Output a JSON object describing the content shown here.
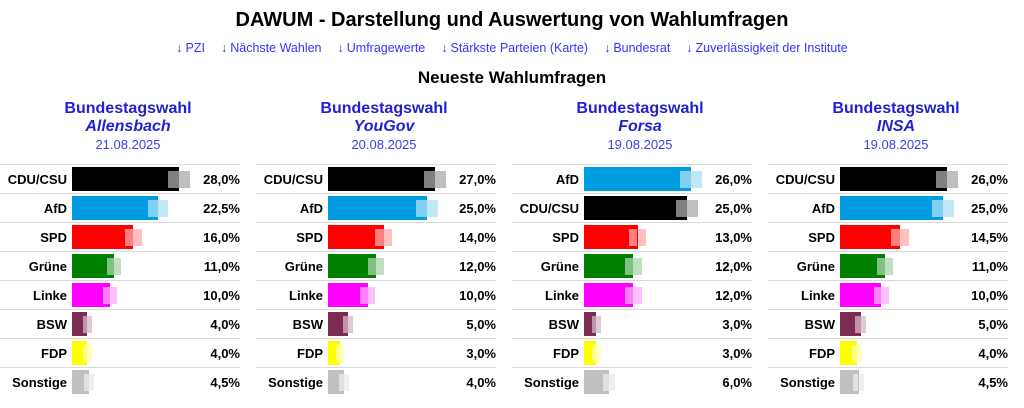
{
  "page": {
    "title": "DAWUM - Darstellung und Auswertung von Wahlumfragen",
    "section_title": "Neueste Wahlumfragen",
    "link_arrow": "↓",
    "nav_links": [
      {
        "name": "pzi",
        "label": "PZI"
      },
      {
        "name": "naechste-wahlen",
        "label": "Nächste Wahlen"
      },
      {
        "name": "umfragewerte",
        "label": "Umfragewerte"
      },
      {
        "name": "staerkste-parteien-karte",
        "label": "Stärkste Parteien (Karte)"
      },
      {
        "name": "bundesrat",
        "label": "Bundesrat"
      },
      {
        "name": "zuverlaessigkeit-der-institute",
        "label": "Zuverlässigkeit der Institute"
      }
    ]
  },
  "colors": {
    "heading_blue": "#2222cc",
    "link_blue": "#3333ff",
    "date_blue": "#3e3ee3",
    "row_line": "#d9d9d9",
    "parties": {
      "CDU/CSU": "#000000",
      "AfD": "#009ee0",
      "SPD": "#ff0000",
      "Grüne": "#008000",
      "Linke": "#ff00ff",
      "BSW": "#7c2b53",
      "FDP": "#ffff00",
      "Sonstige": "#c0c0c0"
    }
  },
  "chart_data": [
    {
      "type": "bar",
      "orientation": "horizontal",
      "title": "Bundestagswahl",
      "institute": "Allensbach",
      "date": "21.08.2025",
      "categories": [
        "CDU/CSU",
        "AfD",
        "SPD",
        "Grüne",
        "Linke",
        "BSW",
        "FDP",
        "Sonstige"
      ],
      "values": [
        28.0,
        22.5,
        16.0,
        11.0,
        10.0,
        4.0,
        4.0,
        4.5
      ],
      "value_labels": [
        "28,0%",
        "22,5%",
        "16,0%",
        "11,0%",
        "10,0%",
        "4,0%",
        "4,0%",
        "4,5%"
      ],
      "unit": "%",
      "xlim": [
        0,
        28
      ],
      "grid": false,
      "legend": false
    },
    {
      "type": "bar",
      "orientation": "horizontal",
      "title": "Bundestagswahl",
      "institute": "YouGov",
      "date": "20.08.2025",
      "categories": [
        "CDU/CSU",
        "AfD",
        "SPD",
        "Grüne",
        "Linke",
        "BSW",
        "FDP",
        "Sonstige"
      ],
      "values": [
        27.0,
        25.0,
        14.0,
        12.0,
        10.0,
        5.0,
        3.0,
        4.0
      ],
      "value_labels": [
        "27,0%",
        "25,0%",
        "14,0%",
        "12,0%",
        "10,0%",
        "5,0%",
        "3,0%",
        "4,0%"
      ],
      "unit": "%",
      "xlim": [
        0,
        27
      ],
      "grid": false,
      "legend": false
    },
    {
      "type": "bar",
      "orientation": "horizontal",
      "title": "Bundestagswahl",
      "institute": "Forsa",
      "date": "19.08.2025",
      "categories": [
        "AfD",
        "CDU/CSU",
        "SPD",
        "Grüne",
        "Linke",
        "BSW",
        "FDP",
        "Sonstige"
      ],
      "values": [
        26.0,
        25.0,
        13.0,
        12.0,
        12.0,
        3.0,
        3.0,
        6.0
      ],
      "value_labels": [
        "26,0%",
        "25,0%",
        "13,0%",
        "12,0%",
        "12,0%",
        "3,0%",
        "3,0%",
        "6,0%"
      ],
      "unit": "%",
      "xlim": [
        0,
        26
      ],
      "grid": false,
      "legend": false
    },
    {
      "type": "bar",
      "orientation": "horizontal",
      "title": "Bundestagswahl",
      "institute": "INSA",
      "date": "19.08.2025",
      "categories": [
        "CDU/CSU",
        "AfD",
        "SPD",
        "Grüne",
        "Linke",
        "BSW",
        "FDP",
        "Sonstige"
      ],
      "values": [
        26.0,
        25.0,
        14.5,
        11.0,
        10.0,
        5.0,
        4.0,
        4.5
      ],
      "value_labels": [
        "26,0%",
        "25,0%",
        "14,5%",
        "11,0%",
        "10,0%",
        "5,0%",
        "4,0%",
        "4,5%"
      ],
      "unit": "%",
      "xlim": [
        0,
        26
      ],
      "grid": false,
      "legend": false
    }
  ]
}
